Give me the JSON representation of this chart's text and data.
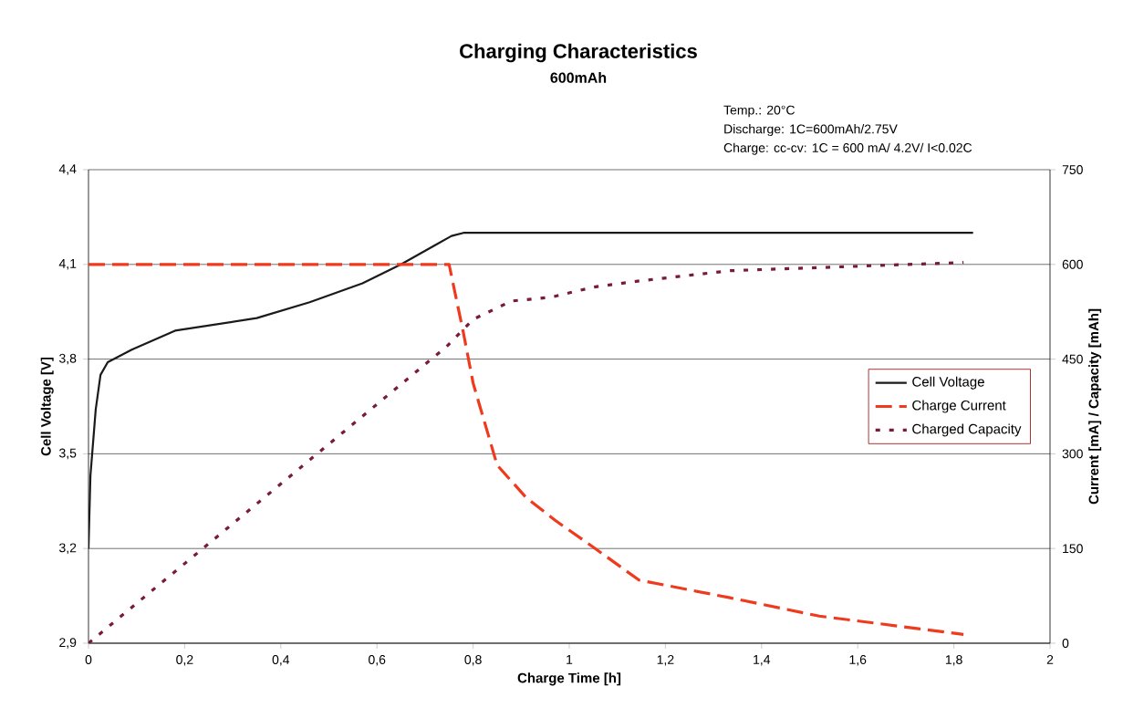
{
  "chart_data": {
    "type": "line",
    "title": "Charging Characteristics",
    "subtitle": "600mAh",
    "xlabel": "Charge Time [h]",
    "ylabel": "Cell Voltage [V]",
    "y2label": "Current [mA] / Capacity [mAh]",
    "annotations": [
      "Temp.:  20°C",
      "Discharge: 1C=600mAh/2.75V",
      "Charge: cc-cv: 1C = 600 mA/ 4.2V/ I<0.02C"
    ],
    "xlim": [
      0,
      2
    ],
    "ylim": [
      2.9,
      4.4
    ],
    "y2lim": [
      0,
      750
    ],
    "xticks": [
      0,
      {
        "value": 0.2,
        "label": "0,2"
      },
      {
        "value": 0.4,
        "label": "0,4"
      },
      {
        "value": 0.6,
        "label": "0,6"
      },
      {
        "value": 0.8,
        "label": "0,8"
      },
      1,
      {
        "value": 1.2,
        "label": "1,2"
      },
      {
        "value": 1.4,
        "label": "1,4"
      },
      {
        "value": 1.6,
        "label": "1,6"
      },
      {
        "value": 1.8,
        "label": "1,8"
      },
      2
    ],
    "yticks": [
      {
        "value": 2.9,
        "label": "2,9"
      },
      {
        "value": 3.2,
        "label": "3,2"
      },
      {
        "value": 3.5,
        "label": "3,5"
      },
      {
        "value": 3.8,
        "label": "3,8"
      },
      {
        "value": 4.1,
        "label": "4,1"
      },
      {
        "value": 4.4,
        "label": "4,4"
      }
    ],
    "y2ticks": [
      0,
      150,
      300,
      450,
      600,
      750
    ],
    "grid": "y",
    "legend": "right",
    "marker": "none",
    "series": [
      {
        "name": "Cell Voltage",
        "color": "#1a1a1a",
        "line_style": "solid",
        "x": [
          0,
          0.004,
          0.015,
          0.025,
          0.04,
          0.09,
          0.18,
          0.35,
          0.46,
          0.57,
          0.65,
          0.72,
          0.755,
          0.78,
          1.84
        ],
        "values": [
          3.2,
          3.43,
          3.64,
          3.75,
          3.79,
          3.83,
          3.89,
          3.93,
          3.98,
          4.04,
          4.1,
          4.16,
          4.19,
          4.2,
          4.2
        ]
      },
      {
        "name": "Charge Current",
        "color": "#f03a1e",
        "line_style": "dashed",
        "axis": "y2",
        "x": [
          0,
          0.75,
          0.78,
          0.8,
          0.85,
          0.91,
          0.97,
          1.05,
          1.145,
          1.334,
          1.52,
          1.82
        ],
        "values": [
          600,
          600,
          491,
          412,
          282,
          231,
          195,
          152,
          100,
          72,
          43,
          14
        ]
      },
      {
        "name": "Charged Capacity",
        "color": "#7a1a3a",
        "line_style": "dotted",
        "axis": "y2",
        "x": [
          0,
          0.745,
          0.8,
          0.88,
          0.962,
          1.05,
          1.148,
          1.334,
          1.82
        ],
        "values": [
          0,
          470,
          513,
          542,
          548,
          564,
          574,
          590,
          603
        ]
      }
    ]
  }
}
